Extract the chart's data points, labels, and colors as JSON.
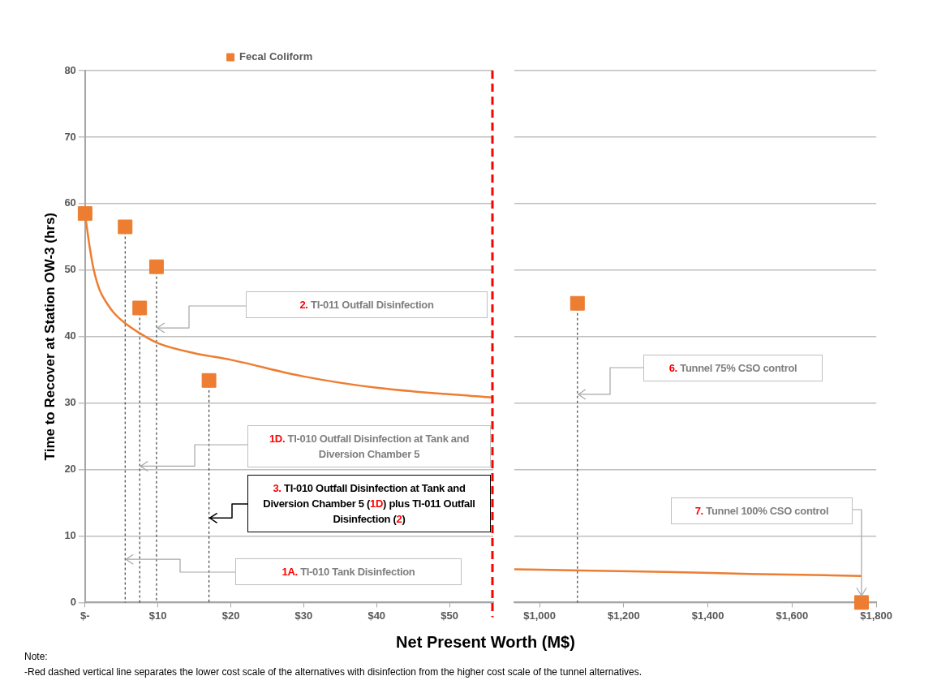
{
  "chart_data": [
    {
      "type": "scatter",
      "xlabel": "Net Present Worth (M$)",
      "ylabel": "Time to Recover at Station OW-3 (hrs)",
      "legend": "top",
      "marker": "square",
      "grid": "y",
      "xlim": [
        0,
        56
      ],
      "xticks": [
        {
          "value": 0,
          "label": "$-"
        },
        {
          "value": 10,
          "label": "$10"
        },
        {
          "value": 20,
          "label": "$20"
        },
        {
          "value": 30,
          "label": "$30"
        },
        {
          "value": 40,
          "label": "$40"
        },
        {
          "value": 50,
          "label": "$50"
        }
      ],
      "ylim": [
        0,
        80
      ],
      "yticks": [
        0,
        10,
        20,
        30,
        40,
        50,
        60,
        70,
        80
      ],
      "series": [
        {
          "name": "Fecal Coliform",
          "type": "scatter",
          "color": "#ed7d31",
          "x": [
            0,
            5.5,
            7.5,
            9.8,
            17
          ],
          "values": [
            58.5,
            56.5,
            44.3,
            50.5,
            33.4
          ],
          "errors": [
            null,
            [
              0,
              56.5
            ],
            [
              0,
              44.3
            ],
            [
              0,
              50.5
            ],
            [
              0,
              33.4
            ]
          ]
        },
        {
          "type": "line",
          "marker": "none",
          "color": "#ed7d31",
          "x": [
            0,
            0.3,
            0.7,
            1.2,
            2,
            3,
            4,
            5.5,
            7.5,
            10,
            15,
            20,
            30,
            40,
            56
          ],
          "values": [
            58.5,
            56,
            53,
            50,
            47,
            45,
            43.5,
            42,
            40.5,
            39,
            37.5,
            36.5,
            34,
            32.3,
            30.8
          ]
        }
      ],
      "ref_lines": [
        {
          "axis": "x",
          "value": 56,
          "color": "#ff0000",
          "line_style": "dashed"
        }
      ],
      "annotations": [
        "2. TI-011 Outfall Disinfection",
        "1D. TI-010 Outfall Disinfection at Tank and Diversion Chamber 5",
        "3. TI-010 Outfall Disinfection at Tank and Diversion Chamber 5 (1D) plus TI-011 Outfall Disinfection (2)",
        "1A. TI-010 Tank Disinfection",
        "Note:",
        "-Red dashed vertical line separates the lower cost scale of the alternatives with disinfection from the higher cost scale of the tunnel alternatives."
      ]
    },
    {
      "type": "scatter",
      "marker": "square",
      "grid": "y",
      "tick_labels": "x",
      "xlim": [
        940,
        1800
      ],
      "xticks": [
        {
          "value": 1000,
          "label": "$1,000"
        },
        {
          "value": 1200,
          "label": "$1,200"
        },
        {
          "value": 1400,
          "label": "$1,400"
        },
        {
          "value": 1600,
          "label": "$1,600"
        },
        {
          "value": 1800,
          "label": "$1,800"
        }
      ],
      "ylim": [
        0,
        80
      ],
      "yticks": [
        0,
        10,
        20,
        30,
        40,
        50,
        60,
        70,
        80
      ],
      "series": [
        {
          "type": "scatter",
          "color": "#ed7d31",
          "x": [
            1090,
            1765
          ],
          "values": [
            45,
            0
          ],
          "errors": [
            [
              0,
              45
            ],
            null
          ]
        },
        {
          "type": "line",
          "marker": "none",
          "color": "#ed7d31",
          "x": [
            940,
            1100,
            1300,
            1500,
            1765
          ],
          "values": [
            5,
            4.8,
            4.6,
            4.3,
            4
          ]
        }
      ],
      "annotations": [
        "6. Tunnel 75% CSO control",
        "7. Tunnel 100% CSO control"
      ]
    }
  ]
}
